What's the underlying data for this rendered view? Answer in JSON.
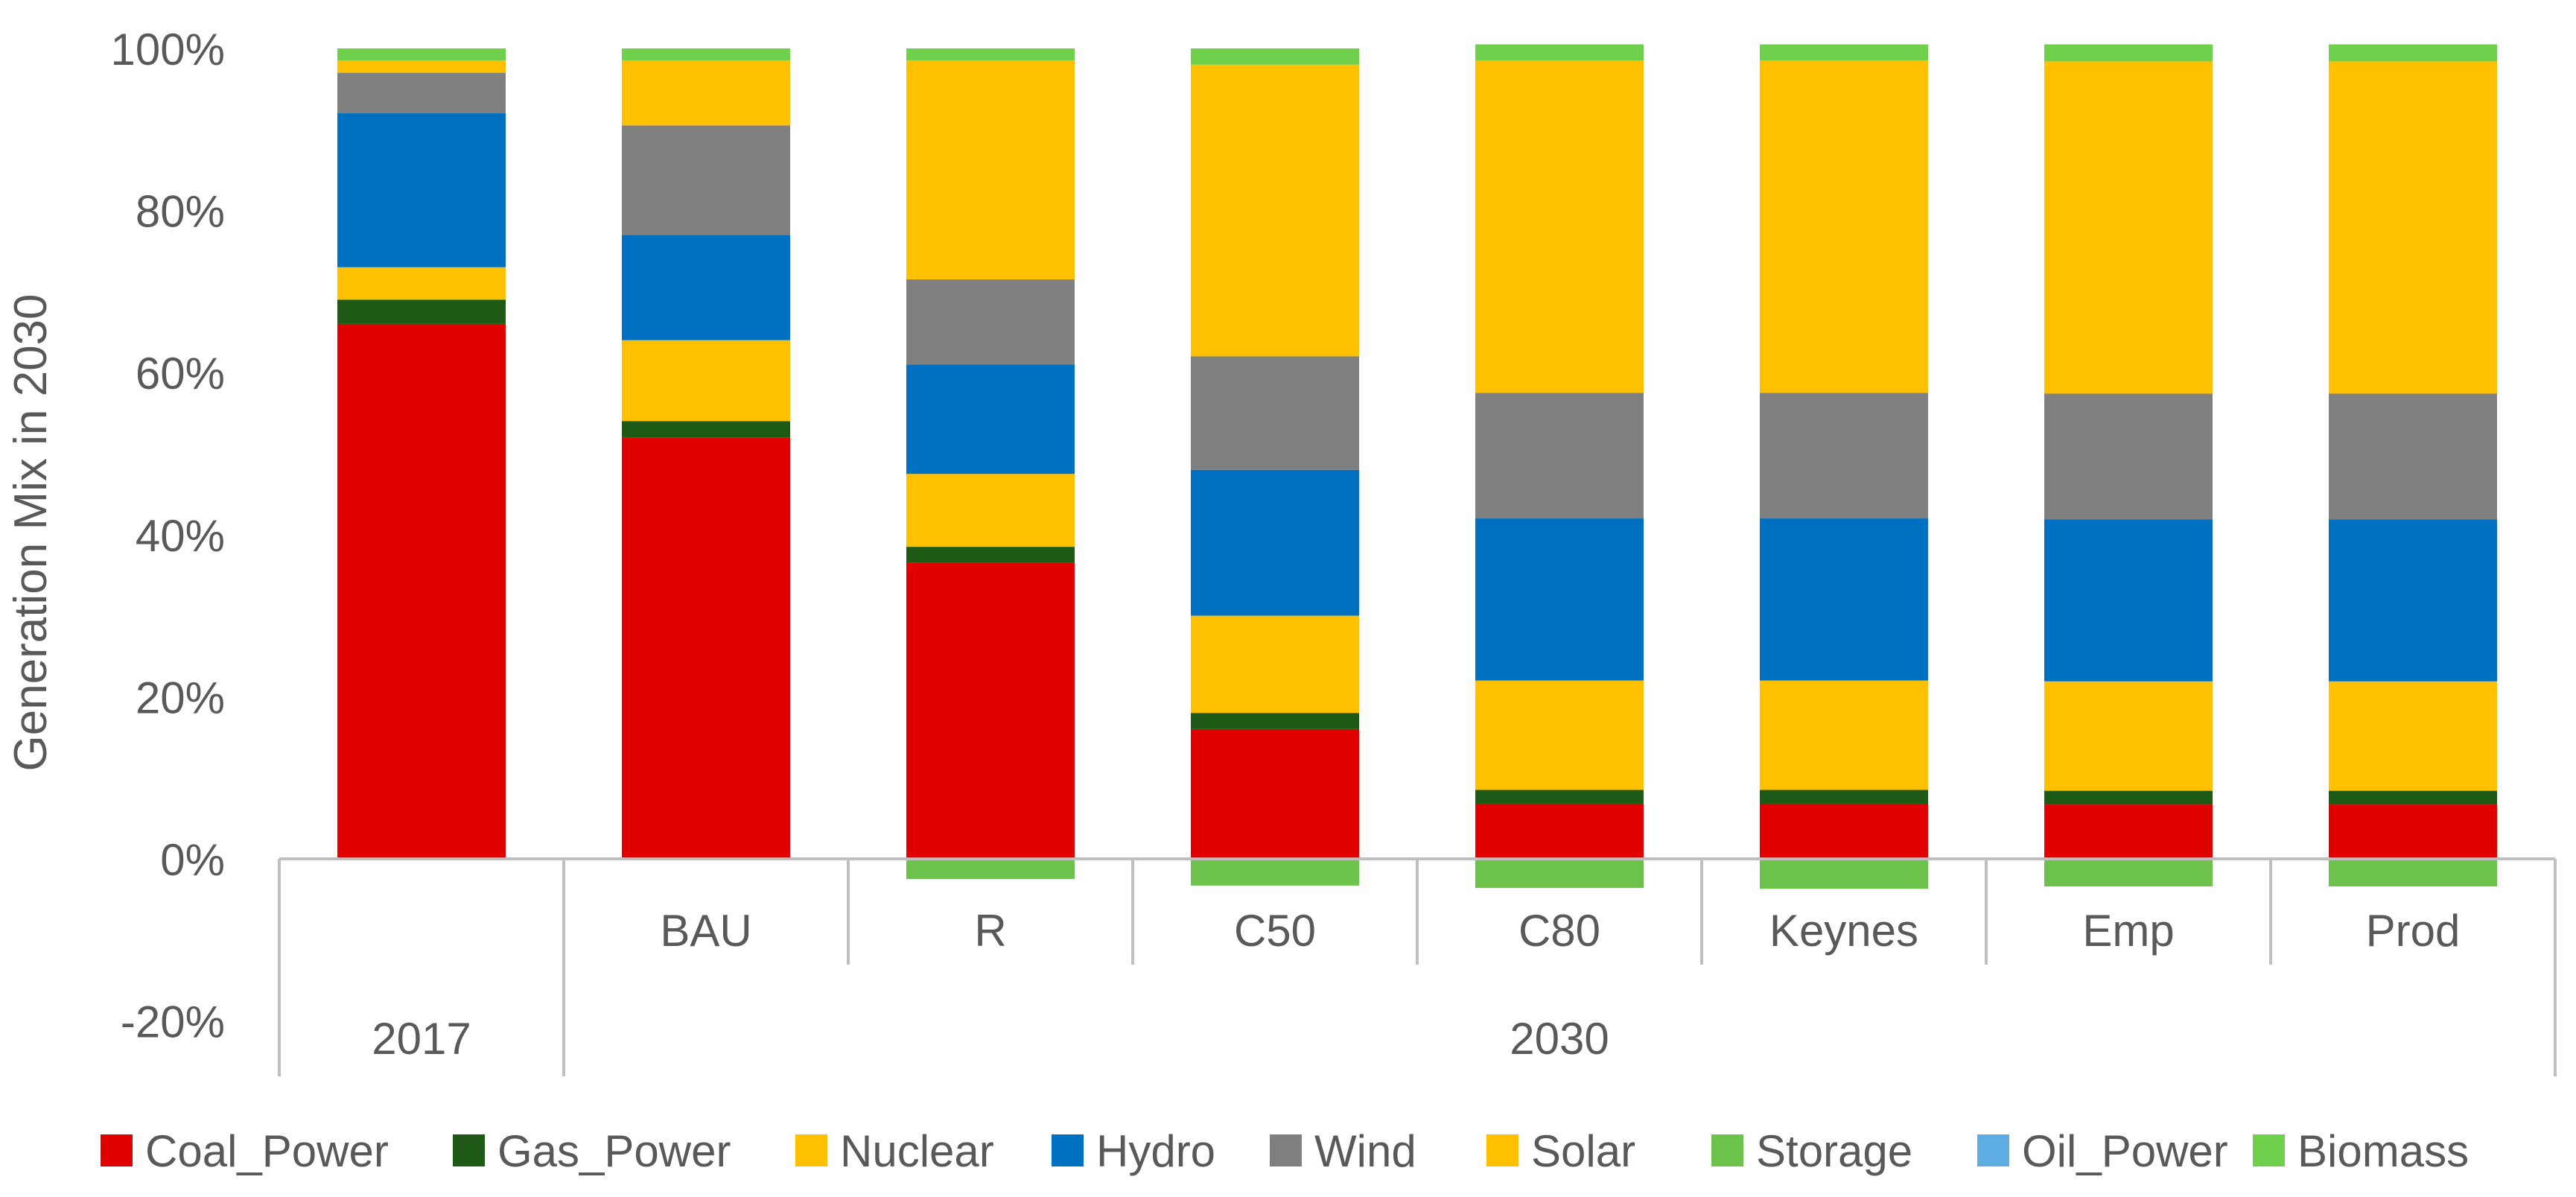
{
  "chart_data": {
    "type": "bar",
    "stacked": true,
    "title": "",
    "xlabel": "",
    "ylabel": "Generation Mix in 2030",
    "ylim": [
      -0.2,
      1.0
    ],
    "yticks": [
      -0.2,
      0,
      0.2,
      0.4,
      0.6,
      0.8,
      1.0
    ],
    "ytick_labels": [
      "-20%",
      "0%",
      "20%",
      "40%",
      "60%",
      "80%",
      "100%"
    ],
    "categories": [
      "",
      "BAU",
      "R",
      "C50",
      "C80",
      "Keynes",
      "Emp",
      "Prod"
    ],
    "groups": [
      {
        "label": "2017",
        "from": 0,
        "to": 0
      },
      {
        "label": "2030",
        "from": 1,
        "to": 7
      }
    ],
    "series": [
      {
        "name": "Coal_Power",
        "color": "#e00000",
        "values": [
          0.66,
          0.52,
          0.365,
          0.16,
          0.068,
          0.068,
          0.067,
          0.067
        ]
      },
      {
        "name": "Gas_Power",
        "color": "#1e5a16",
        "values": [
          0.03,
          0.02,
          0.02,
          0.02,
          0.017,
          0.017,
          0.017,
          0.017
        ]
      },
      {
        "name": "Nuclear",
        "color": "#ffc000",
        "values": [
          0.04,
          0.1,
          0.09,
          0.12,
          0.135,
          0.135,
          0.135,
          0.135
        ]
      },
      {
        "name": "Hydro",
        "color": "#0070c0",
        "values": [
          0.19,
          0.13,
          0.135,
          0.18,
          0.2,
          0.2,
          0.2,
          0.2
        ]
      },
      {
        "name": "Wind",
        "color": "#808080",
        "values": [
          0.05,
          0.135,
          0.105,
          0.14,
          0.155,
          0.155,
          0.155,
          0.155
        ]
      },
      {
        "name": "Solar",
        "color": "#ffc000",
        "values": [
          0.015,
          0.08,
          0.27,
          0.36,
          0.41,
          0.41,
          0.41,
          0.41
        ]
      },
      {
        "name": "Storage",
        "color": "#6cc24a",
        "values": [
          0,
          0,
          -0.025,
          -0.033,
          -0.036,
          -0.037,
          -0.034,
          -0.034
        ]
      },
      {
        "name": "Oil_Power",
        "color": "#5dade2",
        "values": [
          0,
          0,
          0,
          0,
          0,
          0,
          0,
          0
        ]
      },
      {
        "name": "Biomass",
        "color": "#6ed04b",
        "values": [
          0.015,
          0.015,
          0.015,
          0.02,
          0.02,
          0.02,
          0.021,
          0.021
        ]
      }
    ]
  }
}
